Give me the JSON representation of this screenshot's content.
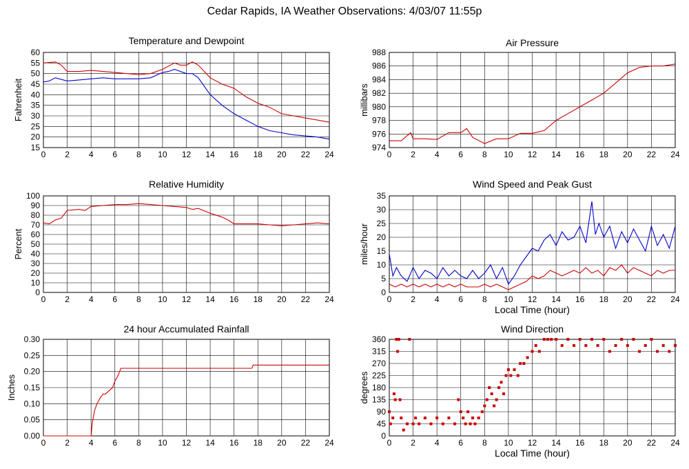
{
  "page": {
    "title": "Cedar Rapids, IA Weather Observations: 4/03/07 11:55p"
  },
  "colors": {
    "series1": "#cc0000",
    "series2": "#0000cc",
    "grid": "#000000",
    "background": "#ffffff"
  },
  "chart_data": [
    {
      "id": "temp",
      "type": "line",
      "title": "Temperature and Dewpoint",
      "xlabel": "",
      "ylabel": "Fahrenheit",
      "xlim": [
        0,
        24
      ],
      "ylim": [
        15,
        60
      ],
      "xticks": [
        0,
        2,
        4,
        6,
        8,
        10,
        12,
        14,
        16,
        18,
        20,
        22,
        24
      ],
      "yticks": [
        15,
        20,
        25,
        30,
        35,
        40,
        45,
        50,
        55,
        60
      ],
      "grid": true,
      "series": [
        {
          "color": "#cc0000",
          "x": [
            0,
            1,
            1.5,
            2,
            3,
            4,
            5,
            6,
            7,
            8,
            9,
            10,
            11,
            11.5,
            12,
            12.5,
            13,
            14,
            15,
            16,
            17,
            18,
            19,
            20,
            21,
            22,
            23,
            24
          ],
          "y": [
            55,
            55.5,
            54,
            51,
            51,
            51.5,
            51,
            50.5,
            50,
            49.5,
            50,
            52,
            55,
            54,
            54,
            55.5,
            54,
            48,
            45,
            43,
            39,
            36,
            34,
            31,
            30,
            29,
            28,
            27
          ]
        },
        {
          "color": "#0000cc",
          "x": [
            0,
            0.5,
            1,
            2,
            3,
            4,
            5,
            6,
            7,
            8,
            9,
            10,
            10.5,
            11,
            11.5,
            12,
            12.5,
            13,
            14,
            15,
            16,
            17,
            18,
            19,
            20,
            21,
            22,
            23,
            24
          ],
          "y": [
            46,
            46.5,
            48,
            46.5,
            47,
            47.5,
            48,
            47.5,
            47.5,
            47.5,
            48,
            50.5,
            51,
            52,
            51,
            50,
            50,
            48,
            40,
            35,
            31,
            28,
            25,
            23,
            22,
            21,
            20.5,
            20,
            19
          ]
        }
      ]
    },
    {
      "id": "pressure",
      "type": "line",
      "title": "Air Pressure",
      "xlabel": "",
      "ylabel": "millibars",
      "xlim": [
        0,
        24
      ],
      "ylim": [
        974,
        988
      ],
      "xticks": [
        0,
        2,
        4,
        6,
        8,
        10,
        12,
        14,
        16,
        18,
        20,
        22,
        24
      ],
      "yticks": [
        974,
        976,
        978,
        980,
        982,
        984,
        986,
        988
      ],
      "grid": true,
      "series": [
        {
          "color": "#cc0000",
          "x": [
            0,
            1,
            1.8,
            2,
            3,
            4,
            5,
            6,
            6.5,
            7,
            8,
            9,
            10,
            11,
            12,
            13,
            14,
            15,
            16,
            17,
            18,
            19,
            20,
            21,
            22,
            23,
            24
          ],
          "y": [
            975,
            975,
            976.2,
            975.3,
            975.3,
            975.2,
            976.2,
            976.2,
            976.8,
            975.5,
            974.6,
            975.3,
            975.3,
            976.1,
            976.1,
            976.5,
            978,
            979,
            980,
            981,
            982,
            983.5,
            985,
            985.8,
            986,
            986,
            986.3
          ]
        }
      ]
    },
    {
      "id": "humidity",
      "type": "line",
      "title": "Relative Humidity",
      "xlabel": "",
      "ylabel": "Percent",
      "xlim": [
        0,
        24
      ],
      "ylim": [
        0,
        100
      ],
      "xticks": [
        0,
        2,
        4,
        6,
        8,
        10,
        12,
        14,
        16,
        18,
        20,
        22,
        24
      ],
      "yticks": [
        0,
        10,
        20,
        30,
        40,
        50,
        60,
        70,
        80,
        90,
        100
      ],
      "grid": true,
      "series": [
        {
          "color": "#cc0000",
          "x": [
            0,
            0.5,
            1,
            1.5,
            2,
            3,
            3.5,
            4,
            5,
            6,
            7,
            8,
            9,
            10,
            11,
            12,
            12.5,
            13,
            14,
            15,
            15.5,
            16,
            17,
            18,
            19,
            20,
            21,
            22,
            23,
            24
          ],
          "y": [
            72,
            71,
            75,
            77,
            85,
            86,
            85,
            89,
            90,
            91,
            91,
            92,
            91,
            90,
            89,
            88,
            86,
            87,
            82,
            78,
            75,
            71,
            71,
            71,
            70,
            69,
            70,
            71,
            72,
            71
          ]
        }
      ]
    },
    {
      "id": "wind",
      "type": "line",
      "title": "Wind Speed and Peak Gust",
      "xlabel": "Local Time (hour)",
      "ylabel": "miles/hour",
      "xlim": [
        0,
        24
      ],
      "ylim": [
        0,
        35
      ],
      "xticks": [
        0,
        2,
        4,
        6,
        8,
        10,
        12,
        14,
        16,
        18,
        20,
        22,
        24
      ],
      "yticks": [
        0,
        5,
        10,
        15,
        20,
        25,
        30,
        35
      ],
      "grid": true,
      "series": [
        {
          "color": "#0000cc",
          "x": [
            0,
            0.3,
            0.6,
            1,
            1.5,
            2,
            2.5,
            3,
            3.5,
            4,
            4.5,
            5,
            5.5,
            6,
            6.5,
            7,
            7.5,
            8,
            8.5,
            9,
            9.5,
            10,
            10.5,
            11,
            11.5,
            12,
            12.5,
            13,
            13.5,
            14,
            14.5,
            15,
            15.5,
            16,
            16.5,
            17,
            17.3,
            17.6,
            18,
            18.5,
            19,
            19.5,
            20,
            20.5,
            21,
            21.5,
            22,
            22.5,
            23,
            23.5,
            24
          ],
          "y": [
            14,
            6,
            9,
            6,
            4,
            9,
            5,
            8,
            7,
            5,
            9,
            6,
            8,
            6,
            5,
            8,
            5,
            7,
            10,
            5,
            9,
            3,
            6,
            10,
            13,
            16,
            15,
            19,
            21,
            17,
            22,
            19,
            20,
            24,
            18,
            33,
            21,
            25,
            20,
            24,
            16,
            22,
            18,
            23,
            19,
            15,
            24,
            17,
            21,
            16,
            24
          ]
        },
        {
          "color": "#cc0000",
          "x": [
            0,
            0.5,
            1,
            1.5,
            2,
            2.5,
            3,
            3.5,
            4,
            4.5,
            5,
            5.5,
            6,
            6.5,
            7,
            7.5,
            8,
            8.5,
            9,
            9.5,
            10,
            10.5,
            11,
            11.5,
            12,
            12.5,
            13,
            13.5,
            14,
            14.5,
            15,
            15.5,
            16,
            16.5,
            17,
            17.5,
            18,
            18.5,
            19,
            19.5,
            20,
            20.5,
            21,
            21.5,
            22,
            22.5,
            23,
            23.5,
            24
          ],
          "y": [
            3,
            2,
            3,
            2,
            3,
            2,
            3,
            2,
            3,
            2,
            3,
            2,
            3,
            2,
            2,
            2,
            3,
            2,
            3,
            2,
            1,
            2,
            3,
            4,
            6,
            5,
            6,
            8,
            7,
            6,
            7,
            8,
            7,
            9,
            7,
            8,
            6,
            9,
            8,
            10,
            7,
            9,
            8,
            7,
            6,
            8,
            7,
            8,
            8
          ]
        }
      ]
    },
    {
      "id": "rain",
      "type": "line",
      "title": "24 hour Accumulated Rainfall",
      "xlabel": "",
      "ylabel": "Inches",
      "xlim": [
        0,
        24
      ],
      "ylim": [
        0,
        0.3
      ],
      "xticks": [
        0,
        2,
        4,
        6,
        8,
        10,
        12,
        14,
        16,
        18,
        20,
        22,
        24
      ],
      "yticks": [
        "0.00",
        "0.05",
        "0.10",
        "0.15",
        "0.20",
        "0.25",
        "0.30"
      ],
      "grid": true,
      "series": [
        {
          "color": "#cc0000",
          "x": [
            0,
            4,
            4.1,
            4.3,
            4.5,
            4.8,
            5,
            5.2,
            5.5,
            5.8,
            6,
            6.3,
            6.5,
            17.5,
            17.6,
            24
          ],
          "y": [
            0,
            0,
            0.04,
            0.08,
            0.1,
            0.12,
            0.13,
            0.13,
            0.14,
            0.15,
            0.17,
            0.19,
            0.21,
            0.21,
            0.22,
            0.22
          ]
        }
      ]
    },
    {
      "id": "winddir",
      "type": "scatter",
      "title": "Wind Direction",
      "xlabel": "Local Time (hour)",
      "ylabel": "degrees",
      "xlim": [
        0,
        24
      ],
      "ylim": [
        0,
        360
      ],
      "xticks": [
        0,
        2,
        4,
        6,
        8,
        10,
        12,
        14,
        16,
        18,
        20,
        22,
        24
      ],
      "yticks": [
        0,
        45,
        90,
        135,
        180,
        225,
        270,
        315,
        360
      ],
      "grid": true,
      "series": [
        {
          "color": "#cc0000",
          "x": [
            0,
            0.1,
            0.3,
            0.4,
            0.5,
            0.6,
            0.7,
            0.8,
            0.9,
            1,
            1.2,
            1.5,
            1.7,
            2,
            2.2,
            2.5,
            3,
            3.5,
            4,
            4.5,
            5,
            5.5,
            5.8,
            6,
            6.2,
            6.4,
            6.6,
            6.8,
            7,
            7.2,
            7.5,
            7.8,
            8,
            8.2,
            8.4,
            8.6,
            8.8,
            9,
            9.2,
            9.4,
            9.6,
            9.8,
            10,
            10.2,
            10.5,
            10.8,
            11,
            11.3,
            11.6,
            12,
            12.3,
            12.6,
            13,
            13.3,
            13.6,
            14,
            14.5,
            15,
            15.5,
            16,
            16.5,
            17,
            17.5,
            18,
            18.5,
            19,
            19.5,
            20,
            20.5,
            21,
            21.5,
            22,
            22.5,
            23,
            23.5,
            24
          ],
          "y": [
            90,
            45,
            67,
            157,
            135,
            360,
            315,
            360,
            135,
            67,
            22,
            45,
            360,
            45,
            67,
            45,
            67,
            45,
            67,
            45,
            67,
            45,
            135,
            90,
            67,
            45,
            90,
            45,
            67,
            45,
            67,
            90,
            112,
            135,
            180,
            157,
            112,
            135,
            180,
            200,
            157,
            225,
            247,
            225,
            247,
            225,
            270,
            270,
            292,
            315,
            337,
            315,
            360,
            360,
            360,
            360,
            337,
            360,
            337,
            360,
            337,
            360,
            337,
            360,
            315,
            337,
            360,
            337,
            360,
            315,
            337,
            360,
            315,
            337,
            315,
            337
          ]
        }
      ]
    }
  ]
}
